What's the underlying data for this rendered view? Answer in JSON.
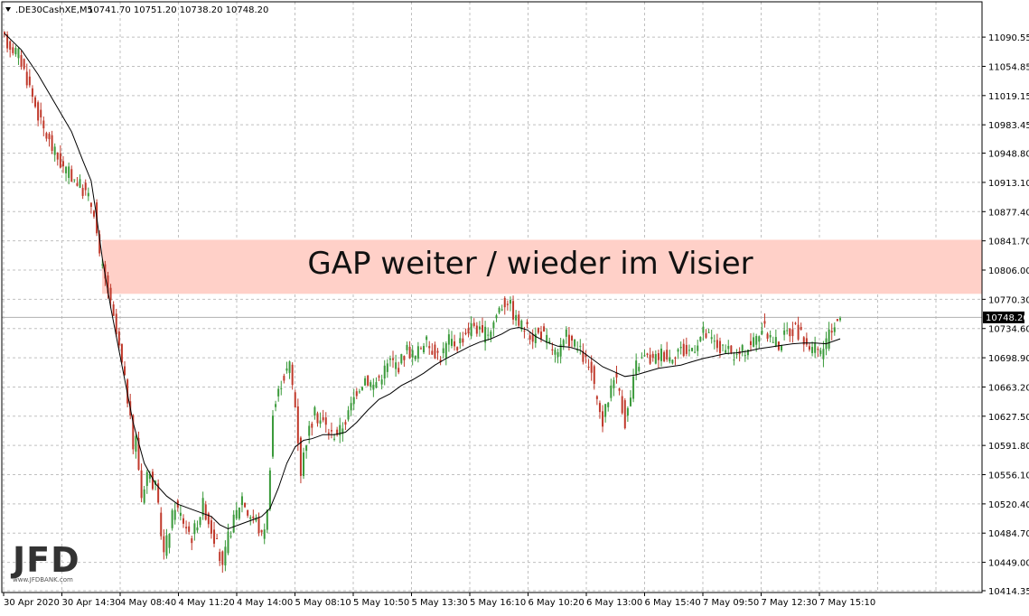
{
  "header": {
    "symbol": ".DE30CashXE,M5",
    "ohlc": "10741.70 10751.20 10738.20 10748.20"
  },
  "annotation": {
    "text": "GAP weiter / wieder im Visier",
    "zone_from": 10777,
    "zone_to": 10843,
    "color": "#ffd0c8"
  },
  "logo": {
    "text": "JFD",
    "subtext": "www.JFDBANK.com"
  },
  "colors": {
    "bull": "#3a9a3a",
    "bear": "#c0392b",
    "ma": "#000000",
    "grid": "#c0c0c0",
    "price_tag_bg": "#000000"
  },
  "chart_data": {
    "type": "candlestick",
    "indicator": "moving average",
    "ylim": [
      10414.35,
      11105
    ],
    "y_ticks": [
      "11090.55",
      "11054.85",
      "11019.15",
      "10983.45",
      "10948.80",
      "10913.10",
      "10877.40",
      "10841.70",
      "10806.00",
      "10770.30",
      "10734.60",
      "10698.90",
      "10663.20",
      "10627.50",
      "10591.80",
      "10556.10",
      "10520.40",
      "10484.70",
      "10449.00",
      "10414.35"
    ],
    "y_tick_values": [
      11090.55,
      11054.85,
      11019.15,
      10983.45,
      10948.8,
      10913.1,
      10877.4,
      10841.7,
      10806.0,
      10770.3,
      10734.6,
      10698.9,
      10663.2,
      10627.5,
      10591.8,
      10556.1,
      10520.4,
      10484.7,
      10449.0,
      10414.35
    ],
    "x_ticks": [
      "30 Apr 2020",
      "30 Apr 14:30",
      "4 May 08:40",
      "4 May 11:20",
      "4 May 14:00",
      "5 May 08:10",
      "5 May 10:50",
      "5 May 13:30",
      "5 May 16:10",
      "6 May 10:20",
      "6 May 13:00",
      "6 May 15:40",
      "7 May 09:50",
      "7 May 12:30",
      "7 May 15:10"
    ],
    "current_price": "10748.20",
    "current_price_value": 10748.2,
    "price_path": [
      [
        0,
        11090
      ],
      [
        6,
        11070
      ],
      [
        10,
        11030
      ],
      [
        14,
        10985
      ],
      [
        18,
        10955
      ],
      [
        22,
        10930
      ],
      [
        26,
        10918
      ],
      [
        30,
        10900
      ],
      [
        33,
        10880
      ],
      [
        35,
        10820
      ],
      [
        38,
        10780
      ],
      [
        42,
        10710
      ],
      [
        45,
        10650
      ],
      [
        47,
        10590
      ],
      [
        48,
        10600
      ],
      [
        50,
        10530
      ],
      [
        52,
        10560
      ],
      [
        55,
        10540
      ],
      [
        58,
        10460
      ],
      [
        60,
        10490
      ],
      [
        62,
        10520
      ],
      [
        65,
        10500
      ],
      [
        68,
        10480
      ],
      [
        70,
        10500
      ],
      [
        72,
        10520
      ],
      [
        75,
        10490
      ],
      [
        77,
        10470
      ],
      [
        79,
        10440
      ],
      [
        81,
        10480
      ],
      [
        83,
        10500
      ],
      [
        86,
        10530
      ],
      [
        88,
        10510
      ],
      [
        91,
        10500
      ],
      [
        93,
        10480
      ],
      [
        95,
        10510
      ],
      [
        97,
        10630
      ],
      [
        100,
        10670
      ],
      [
        103,
        10690
      ],
      [
        105,
        10640
      ],
      [
        107,
        10560
      ],
      [
        109,
        10600
      ],
      [
        112,
        10630
      ],
      [
        115,
        10620
      ],
      [
        118,
        10605
      ],
      [
        121,
        10610
      ],
      [
        124,
        10630
      ],
      [
        127,
        10660
      ],
      [
        130,
        10675
      ],
      [
        133,
        10665
      ],
      [
        136,
        10680
      ],
      [
        139,
        10695
      ],
      [
        142,
        10690
      ],
      [
        145,
        10710
      ],
      [
        148,
        10700
      ],
      [
        151,
        10720
      ],
      [
        154,
        10710
      ],
      [
        157,
        10700
      ],
      [
        160,
        10720
      ],
      [
        163,
        10715
      ],
      [
        166,
        10730
      ],
      [
        169,
        10740
      ],
      [
        172,
        10725
      ],
      [
        175,
        10735
      ],
      [
        178,
        10760
      ],
      [
        181,
        10770
      ],
      [
        184,
        10745
      ],
      [
        187,
        10735
      ],
      [
        190,
        10725
      ],
      [
        193,
        10730
      ],
      [
        196,
        10715
      ],
      [
        199,
        10700
      ],
      [
        202,
        10725
      ],
      [
        205,
        10715
      ],
      [
        208,
        10700
      ],
      [
        211,
        10680
      ],
      [
        213,
        10640
      ],
      [
        215,
        10620
      ],
      [
        217,
        10650
      ],
      [
        219,
        10680
      ],
      [
        221,
        10660
      ],
      [
        223,
        10620
      ],
      [
        225,
        10650
      ],
      [
        227,
        10690
      ],
      [
        230,
        10700
      ],
      [
        233,
        10695
      ],
      [
        236,
        10705
      ],
      [
        239,
        10700
      ],
      [
        242,
        10710
      ],
      [
        245,
        10705
      ],
      [
        248,
        10715
      ],
      [
        251,
        10730
      ],
      [
        254,
        10720
      ],
      [
        257,
        10710
      ],
      [
        260,
        10705
      ],
      [
        263,
        10700
      ],
      [
        266,
        10710
      ],
      [
        269,
        10720
      ],
      [
        272,
        10735
      ],
      [
        275,
        10725
      ],
      [
        278,
        10715
      ],
      [
        281,
        10730
      ],
      [
        284,
        10735
      ],
      [
        287,
        10720
      ],
      [
        290,
        10710
      ],
      [
        293,
        10705
      ],
      [
        296,
        10725
      ],
      [
        299,
        10748
      ]
    ],
    "ma_path": [
      [
        0,
        11095
      ],
      [
        6,
        11075
      ],
      [
        12,
        11045
      ],
      [
        18,
        11010
      ],
      [
        24,
        10975
      ],
      [
        28,
        10940
      ],
      [
        31,
        10915
      ],
      [
        33,
        10870
      ],
      [
        35,
        10820
      ],
      [
        38,
        10760
      ],
      [
        42,
        10690
      ],
      [
        46,
        10620
      ],
      [
        50,
        10570
      ],
      [
        54,
        10545
      ],
      [
        58,
        10530
      ],
      [
        62,
        10520
      ],
      [
        66,
        10515
      ],
      [
        70,
        10510
      ],
      [
        74,
        10505
      ],
      [
        77,
        10495
      ],
      [
        80,
        10490
      ],
      [
        84,
        10495
      ],
      [
        88,
        10500
      ],
      [
        92,
        10505
      ],
      [
        95,
        10515
      ],
      [
        98,
        10540
      ],
      [
        101,
        10570
      ],
      [
        104,
        10590
      ],
      [
        107,
        10598
      ],
      [
        110,
        10600
      ],
      [
        114,
        10605
      ],
      [
        118,
        10605
      ],
      [
        122,
        10608
      ],
      [
        126,
        10620
      ],
      [
        130,
        10635
      ],
      [
        134,
        10648
      ],
      [
        138,
        10655
      ],
      [
        142,
        10665
      ],
      [
        146,
        10672
      ],
      [
        150,
        10680
      ],
      [
        154,
        10690
      ],
      [
        158,
        10698
      ],
      [
        162,
        10705
      ],
      [
        166,
        10712
      ],
      [
        170,
        10718
      ],
      [
        174,
        10722
      ],
      [
        178,
        10728
      ],
      [
        181,
        10734
      ],
      [
        184,
        10736
      ],
      [
        187,
        10733
      ],
      [
        190,
        10725
      ],
      [
        194,
        10718
      ],
      [
        198,
        10713
      ],
      [
        202,
        10712
      ],
      [
        206,
        10708
      ],
      [
        210,
        10698
      ],
      [
        214,
        10688
      ],
      [
        218,
        10682
      ],
      [
        222,
        10676
      ],
      [
        226,
        10678
      ],
      [
        230,
        10682
      ],
      [
        234,
        10686
      ],
      [
        238,
        10688
      ],
      [
        242,
        10690
      ],
      [
        246,
        10694
      ],
      [
        250,
        10698
      ],
      [
        254,
        10701
      ],
      [
        258,
        10704
      ],
      [
        262,
        10705
      ],
      [
        266,
        10707
      ],
      [
        270,
        10710
      ],
      [
        274,
        10712
      ],
      [
        278,
        10714
      ],
      [
        282,
        10716
      ],
      [
        286,
        10717
      ],
      [
        290,
        10717
      ],
      [
        294,
        10716
      ],
      [
        299,
        10722
      ]
    ]
  }
}
